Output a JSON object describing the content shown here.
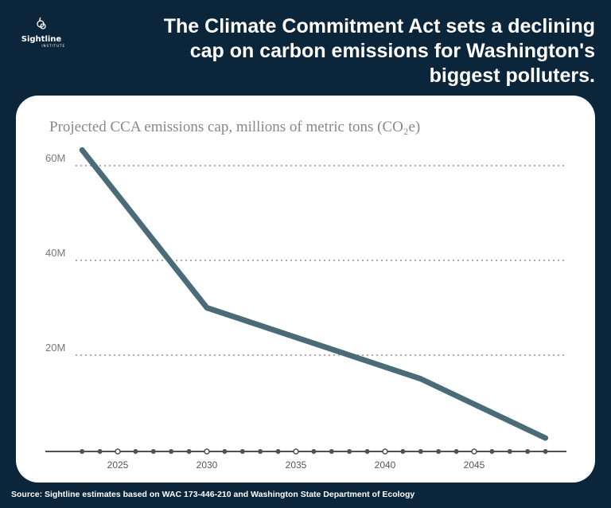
{
  "logo": {
    "name": "Sightline",
    "sub": "INSTITUTE"
  },
  "title": "The Climate Commitment Act sets a declining cap on carbon emissions for Washington's biggest polluters.",
  "source": "Source: Sightline estimates based on WAC 173-446-210 and Washington State Department of Ecology",
  "colors": {
    "background": "#0b263a",
    "line": "#4a6b78",
    "grid": "#aaaaaa",
    "axis": "#555049"
  },
  "chart_data": {
    "type": "line",
    "title": "Projected CCA emissions cap, millions of metric tons (CO₂e)",
    "x": [
      2023,
      2030,
      2042,
      2049
    ],
    "values": [
      63.3,
      30,
      15,
      2.5
    ],
    "xlim": [
      2023,
      2049
    ],
    "ylim": [
      0,
      60
    ],
    "yticks": [
      {
        "v": 20,
        "label": "20M"
      },
      {
        "v": 40,
        "label": "40M"
      },
      {
        "v": 60,
        "label": "60M"
      }
    ],
    "xticks": [
      {
        "v": 2025,
        "label": "2025"
      },
      {
        "v": 2030,
        "label": "2030"
      },
      {
        "v": 2035,
        "label": "2035"
      },
      {
        "v": 2040,
        "label": "2040"
      },
      {
        "v": 2045,
        "label": "2045"
      }
    ],
    "grid": true,
    "xlabel": "",
    "ylabel": ""
  }
}
